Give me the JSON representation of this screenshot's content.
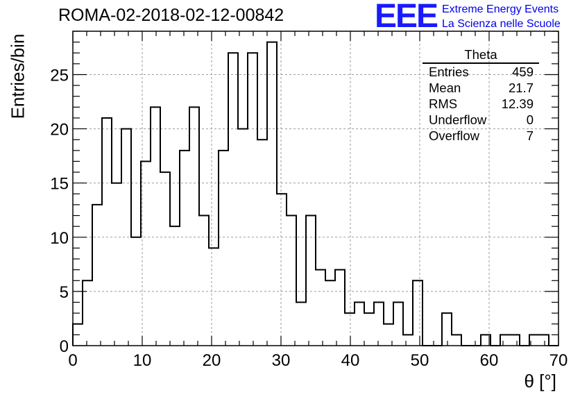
{
  "header": {
    "run_title": "ROMA-02-2018-02-12-00842",
    "logo": "EEE",
    "logo_line1": "Extreme Energy Events",
    "logo_line2": "La Scienza nelle Scuole"
  },
  "stats_box": {
    "title": "Theta",
    "rows": [
      {
        "label": "Entries",
        "value": "459"
      },
      {
        "label": "Mean",
        "value": "21.7"
      },
      {
        "label": "RMS",
        "value": "12.39"
      },
      {
        "label": "Underflow",
        "value": "0"
      },
      {
        "label": "Overflow",
        "value": "7"
      }
    ]
  },
  "colors": {
    "logo": "#1a1aff",
    "line": "#000000",
    "grid": "#9a9a9a"
  },
  "chart_data": {
    "type": "bar",
    "style": "step-histogram",
    "title": "ROMA-02-2018-02-12-00842",
    "xlabel": "θ [°]",
    "ylabel": "Entries/bin",
    "xlim": [
      0,
      70
    ],
    "ylim": [
      0,
      29
    ],
    "grid": true,
    "bin_width": 1.4,
    "x_ticks": [
      0,
      10,
      20,
      30,
      40,
      50,
      60,
      70
    ],
    "y_ticks": [
      0,
      5,
      10,
      15,
      20,
      25
    ],
    "bin_lower_edges": [
      0,
      1.4,
      2.8,
      4.2,
      5.6,
      7,
      8.4,
      9.8,
      11.2,
      12.6,
      14,
      15.4,
      16.8,
      18.2,
      19.6,
      21,
      22.4,
      23.8,
      25.2,
      26.6,
      28,
      29.4,
      30.8,
      32.2,
      33.6,
      35,
      36.4,
      37.8,
      39.2,
      40.6,
      42,
      43.4,
      44.8,
      46.2,
      47.6,
      49,
      50.4,
      51.8,
      53.2,
      54.6,
      56,
      57.4,
      58.8,
      60.2,
      61.6,
      63,
      64.4,
      65.8,
      67.2,
      68.6
    ],
    "values": [
      2,
      6,
      13,
      21,
      15,
      20,
      10,
      17,
      22,
      16,
      11,
      18,
      22,
      12,
      9,
      18,
      27,
      20,
      27,
      19,
      28,
      14,
      12,
      4,
      12,
      7,
      6,
      7,
      3,
      4,
      3,
      4,
      2,
      4,
      1,
      6,
      0,
      0,
      3,
      1,
      0,
      0,
      1,
      0,
      1,
      1,
      0,
      1,
      1,
      0
    ]
  }
}
